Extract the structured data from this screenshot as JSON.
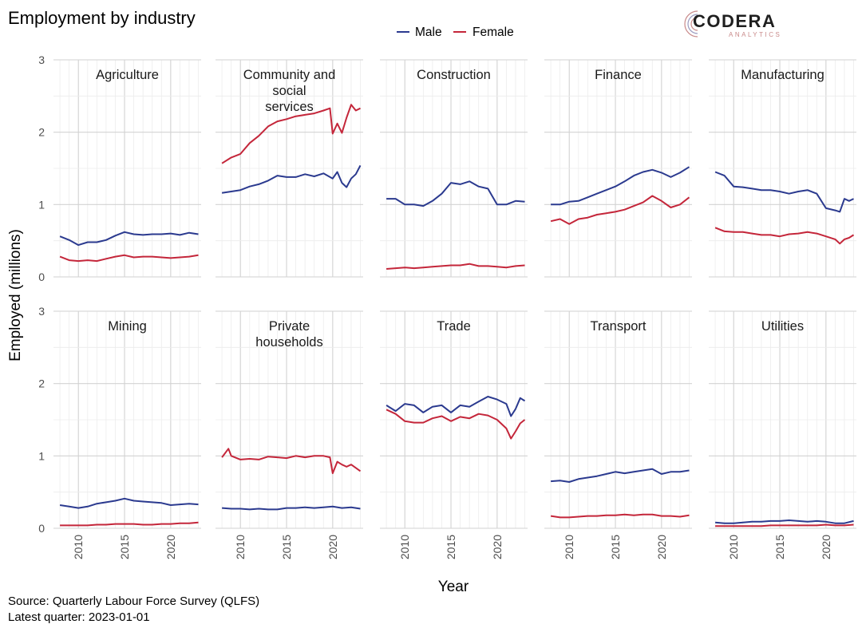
{
  "title": "Employment by industry",
  "source": "Source: Quarterly Labour Force Survey (QLFS)",
  "latest": "Latest quarter: 2023-01-01",
  "logo": {
    "name": "CODERA",
    "sub": "ANALYTICS"
  },
  "colors": {
    "male": "#2b3a8f",
    "female": "#c4263a",
    "grid": "#dedede"
  },
  "chart_data": {
    "type": "line",
    "xlabel": "Year",
    "ylabel": "Employed (millions)",
    "xlim": [
      2007.3,
      2023.3
    ],
    "ylim": [
      0,
      3
    ],
    "xticks": [
      2010,
      2015,
      2020
    ],
    "yticks": [
      0,
      1,
      2,
      3
    ],
    "legend": {
      "placement": "top-center",
      "entries": [
        "Male",
        "Female"
      ]
    },
    "grid": true,
    "panels": [
      {
        "title": "Agriculture",
        "series": [
          {
            "name": "Male",
            "x": [
              2008,
              2009,
              2010,
              2011,
              2012,
              2013,
              2014,
              2015,
              2016,
              2017,
              2018,
              2019,
              2020,
              2021,
              2022,
              2023
            ],
            "values": [
              0.56,
              0.51,
              0.44,
              0.48,
              0.48,
              0.51,
              0.57,
              0.62,
              0.59,
              0.58,
              0.59,
              0.59,
              0.6,
              0.58,
              0.61,
              0.59
            ]
          },
          {
            "name": "Female",
            "x": [
              2008,
              2009,
              2010,
              2011,
              2012,
              2013,
              2014,
              2015,
              2016,
              2017,
              2018,
              2019,
              2020,
              2021,
              2022,
              2023
            ],
            "values": [
              0.28,
              0.23,
              0.22,
              0.23,
              0.22,
              0.25,
              0.28,
              0.3,
              0.27,
              0.28,
              0.28,
              0.27,
              0.26,
              0.27,
              0.28,
              0.3
            ]
          }
        ]
      },
      {
        "title": "Community and social services",
        "series": [
          {
            "name": "Male",
            "x": [
              2008,
              2009,
              2010,
              2011,
              2012,
              2013,
              2014,
              2015,
              2016,
              2017,
              2018,
              2019,
              2020,
              2020.5,
              2021,
              2021.5,
              2022,
              2022.5,
              2023
            ],
            "values": [
              1.16,
              1.18,
              1.2,
              1.25,
              1.28,
              1.33,
              1.4,
              1.38,
              1.38,
              1.42,
              1.39,
              1.43,
              1.36,
              1.45,
              1.3,
              1.24,
              1.36,
              1.42,
              1.54
            ]
          },
          {
            "name": "Female",
            "x": [
              2008,
              2009,
              2010,
              2011,
              2012,
              2013,
              2014,
              2015,
              2016,
              2017,
              2018,
              2019,
              2019.7,
              2020,
              2020.5,
              2021,
              2021.5,
              2022,
              2022.5,
              2023
            ],
            "values": [
              1.57,
              1.65,
              1.7,
              1.85,
              1.95,
              2.08,
              2.15,
              2.18,
              2.22,
              2.24,
              2.26,
              2.3,
              2.33,
              1.98,
              2.12,
              1.99,
              2.2,
              2.38,
              2.3,
              2.33
            ]
          }
        ]
      },
      {
        "title": "Construction",
        "series": [
          {
            "name": "Male",
            "x": [
              2008,
              2009,
              2010,
              2011,
              2012,
              2013,
              2014,
              2015,
              2016,
              2017,
              2018,
              2019,
              2020,
              2021,
              2022,
              2023
            ],
            "values": [
              1.08,
              1.08,
              1.0,
              1.0,
              0.98,
              1.05,
              1.15,
              1.3,
              1.28,
              1.32,
              1.25,
              1.22,
              1.0,
              1.0,
              1.05,
              1.04
            ]
          },
          {
            "name": "Female",
            "x": [
              2008,
              2009,
              2010,
              2011,
              2012,
              2013,
              2014,
              2015,
              2016,
              2017,
              2018,
              2019,
              2020,
              2021,
              2022,
              2023
            ],
            "values": [
              0.11,
              0.12,
              0.13,
              0.12,
              0.13,
              0.14,
              0.15,
              0.16,
              0.16,
              0.18,
              0.15,
              0.15,
              0.14,
              0.13,
              0.15,
              0.16
            ]
          }
        ]
      },
      {
        "title": "Finance",
        "series": [
          {
            "name": "Male",
            "x": [
              2008,
              2009,
              2010,
              2011,
              2012,
              2013,
              2014,
              2015,
              2016,
              2017,
              2018,
              2019,
              2020,
              2021,
              2022,
              2023
            ],
            "values": [
              1.0,
              1.0,
              1.04,
              1.05,
              1.1,
              1.15,
              1.2,
              1.25,
              1.32,
              1.4,
              1.45,
              1.48,
              1.44,
              1.38,
              1.44,
              1.52
            ]
          },
          {
            "name": "Female",
            "x": [
              2008,
              2009,
              2010,
              2011,
              2012,
              2013,
              2014,
              2015,
              2016,
              2017,
              2018,
              2019,
              2020,
              2021,
              2022,
              2023
            ],
            "values": [
              0.77,
              0.8,
              0.73,
              0.8,
              0.82,
              0.86,
              0.88,
              0.9,
              0.93,
              0.98,
              1.03,
              1.12,
              1.05,
              0.96,
              1.0,
              1.1
            ]
          }
        ]
      },
      {
        "title": "Manufacturing",
        "series": [
          {
            "name": "Male",
            "x": [
              2008,
              2009,
              2010,
              2011,
              2012,
              2013,
              2014,
              2015,
              2016,
              2017,
              2018,
              2019,
              2020,
              2021,
              2021.5,
              2022,
              2022.5,
              2023
            ],
            "values": [
              1.45,
              1.4,
              1.25,
              1.24,
              1.22,
              1.2,
              1.2,
              1.18,
              1.15,
              1.18,
              1.2,
              1.15,
              0.95,
              0.92,
              0.9,
              1.08,
              1.05,
              1.08
            ]
          },
          {
            "name": "Female",
            "x": [
              2008,
              2009,
              2010,
              2011,
              2012,
              2013,
              2014,
              2015,
              2016,
              2017,
              2018,
              2019,
              2020,
              2021,
              2021.5,
              2022,
              2022.5,
              2023
            ],
            "values": [
              0.68,
              0.63,
              0.62,
              0.62,
              0.6,
              0.58,
              0.58,
              0.56,
              0.59,
              0.6,
              0.62,
              0.6,
              0.56,
              0.52,
              0.46,
              0.52,
              0.54,
              0.58
            ]
          }
        ]
      },
      {
        "title": "Mining",
        "series": [
          {
            "name": "Male",
            "x": [
              2008,
              2009,
              2010,
              2011,
              2012,
              2013,
              2014,
              2015,
              2016,
              2017,
              2018,
              2019,
              2020,
              2021,
              2022,
              2023
            ],
            "values": [
              0.32,
              0.3,
              0.28,
              0.3,
              0.34,
              0.36,
              0.38,
              0.41,
              0.38,
              0.37,
              0.36,
              0.35,
              0.32,
              0.33,
              0.34,
              0.33
            ]
          },
          {
            "name": "Female",
            "x": [
              2008,
              2009,
              2010,
              2011,
              2012,
              2013,
              2014,
              2015,
              2016,
              2017,
              2018,
              2019,
              2020,
              2021,
              2022,
              2023
            ],
            "values": [
              0.04,
              0.04,
              0.04,
              0.04,
              0.05,
              0.05,
              0.06,
              0.06,
              0.06,
              0.05,
              0.05,
              0.06,
              0.06,
              0.07,
              0.07,
              0.08
            ]
          }
        ]
      },
      {
        "title": "Private households",
        "series": [
          {
            "name": "Male",
            "x": [
              2008,
              2009,
              2010,
              2011,
              2012,
              2013,
              2014,
              2015,
              2016,
              2017,
              2018,
              2019,
              2020,
              2021,
              2022,
              2023
            ],
            "values": [
              0.28,
              0.27,
              0.27,
              0.26,
              0.27,
              0.26,
              0.26,
              0.28,
              0.28,
              0.29,
              0.28,
              0.29,
              0.3,
              0.28,
              0.29,
              0.27
            ]
          },
          {
            "name": "Female",
            "x": [
              2008,
              2008.7,
              2009,
              2010,
              2011,
              2012,
              2013,
              2014,
              2015,
              2016,
              2017,
              2018,
              2019,
              2019.7,
              2020,
              2020.5,
              2021,
              2021.5,
              2022,
              2023
            ],
            "values": [
              0.98,
              1.1,
              1.0,
              0.95,
              0.96,
              0.95,
              0.99,
              0.98,
              0.97,
              1.0,
              0.98,
              1.0,
              1.0,
              0.98,
              0.76,
              0.92,
              0.88,
              0.85,
              0.88,
              0.79
            ]
          }
        ]
      },
      {
        "title": "Trade",
        "series": [
          {
            "name": "Male",
            "x": [
              2008,
              2009,
              2010,
              2011,
              2012,
              2013,
              2014,
              2015,
              2016,
              2017,
              2018,
              2019,
              2020,
              2021,
              2021.5,
              2022,
              2022.5,
              2023
            ],
            "values": [
              1.7,
              1.62,
              1.72,
              1.7,
              1.6,
              1.68,
              1.7,
              1.6,
              1.7,
              1.68,
              1.75,
              1.82,
              1.78,
              1.72,
              1.55,
              1.65,
              1.8,
              1.76
            ]
          },
          {
            "name": "Female",
            "x": [
              2008,
              2009,
              2010,
              2011,
              2012,
              2013,
              2014,
              2015,
              2016,
              2017,
              2018,
              2019,
              2020,
              2021,
              2021.5,
              2022,
              2022.5,
              2023
            ],
            "values": [
              1.64,
              1.58,
              1.48,
              1.46,
              1.46,
              1.52,
              1.55,
              1.48,
              1.54,
              1.52,
              1.58,
              1.56,
              1.5,
              1.38,
              1.24,
              1.34,
              1.45,
              1.5
            ]
          }
        ]
      },
      {
        "title": "Transport",
        "series": [
          {
            "name": "Male",
            "x": [
              2008,
              2009,
              2010,
              2011,
              2012,
              2013,
              2014,
              2015,
              2016,
              2017,
              2018,
              2019,
              2020,
              2021,
              2022,
              2023
            ],
            "values": [
              0.65,
              0.66,
              0.64,
              0.68,
              0.7,
              0.72,
              0.75,
              0.78,
              0.76,
              0.78,
              0.8,
              0.82,
              0.75,
              0.78,
              0.78,
              0.8
            ]
          },
          {
            "name": "Female",
            "x": [
              2008,
              2009,
              2010,
              2011,
              2012,
              2013,
              2014,
              2015,
              2016,
              2017,
              2018,
              2019,
              2020,
              2021,
              2022,
              2023
            ],
            "values": [
              0.17,
              0.15,
              0.15,
              0.16,
              0.17,
              0.17,
              0.18,
              0.18,
              0.19,
              0.18,
              0.19,
              0.19,
              0.17,
              0.17,
              0.16,
              0.18
            ]
          }
        ]
      },
      {
        "title": "Utilities",
        "series": [
          {
            "name": "Male",
            "x": [
              2008,
              2009,
              2010,
              2011,
              2012,
              2013,
              2014,
              2015,
              2016,
              2017,
              2018,
              2019,
              2020,
              2021,
              2022,
              2023
            ],
            "values": [
              0.08,
              0.07,
              0.07,
              0.08,
              0.09,
              0.09,
              0.1,
              0.1,
              0.11,
              0.1,
              0.09,
              0.1,
              0.09,
              0.07,
              0.07,
              0.1
            ]
          },
          {
            "name": "Female",
            "x": [
              2008,
              2009,
              2010,
              2011,
              2012,
              2013,
              2014,
              2015,
              2016,
              2017,
              2018,
              2019,
              2020,
              2021,
              2022,
              2023
            ],
            "values": [
              0.03,
              0.03,
              0.03,
              0.03,
              0.03,
              0.03,
              0.04,
              0.04,
              0.04,
              0.04,
              0.04,
              0.04,
              0.05,
              0.04,
              0.04,
              0.05
            ]
          }
        ]
      }
    ]
  }
}
